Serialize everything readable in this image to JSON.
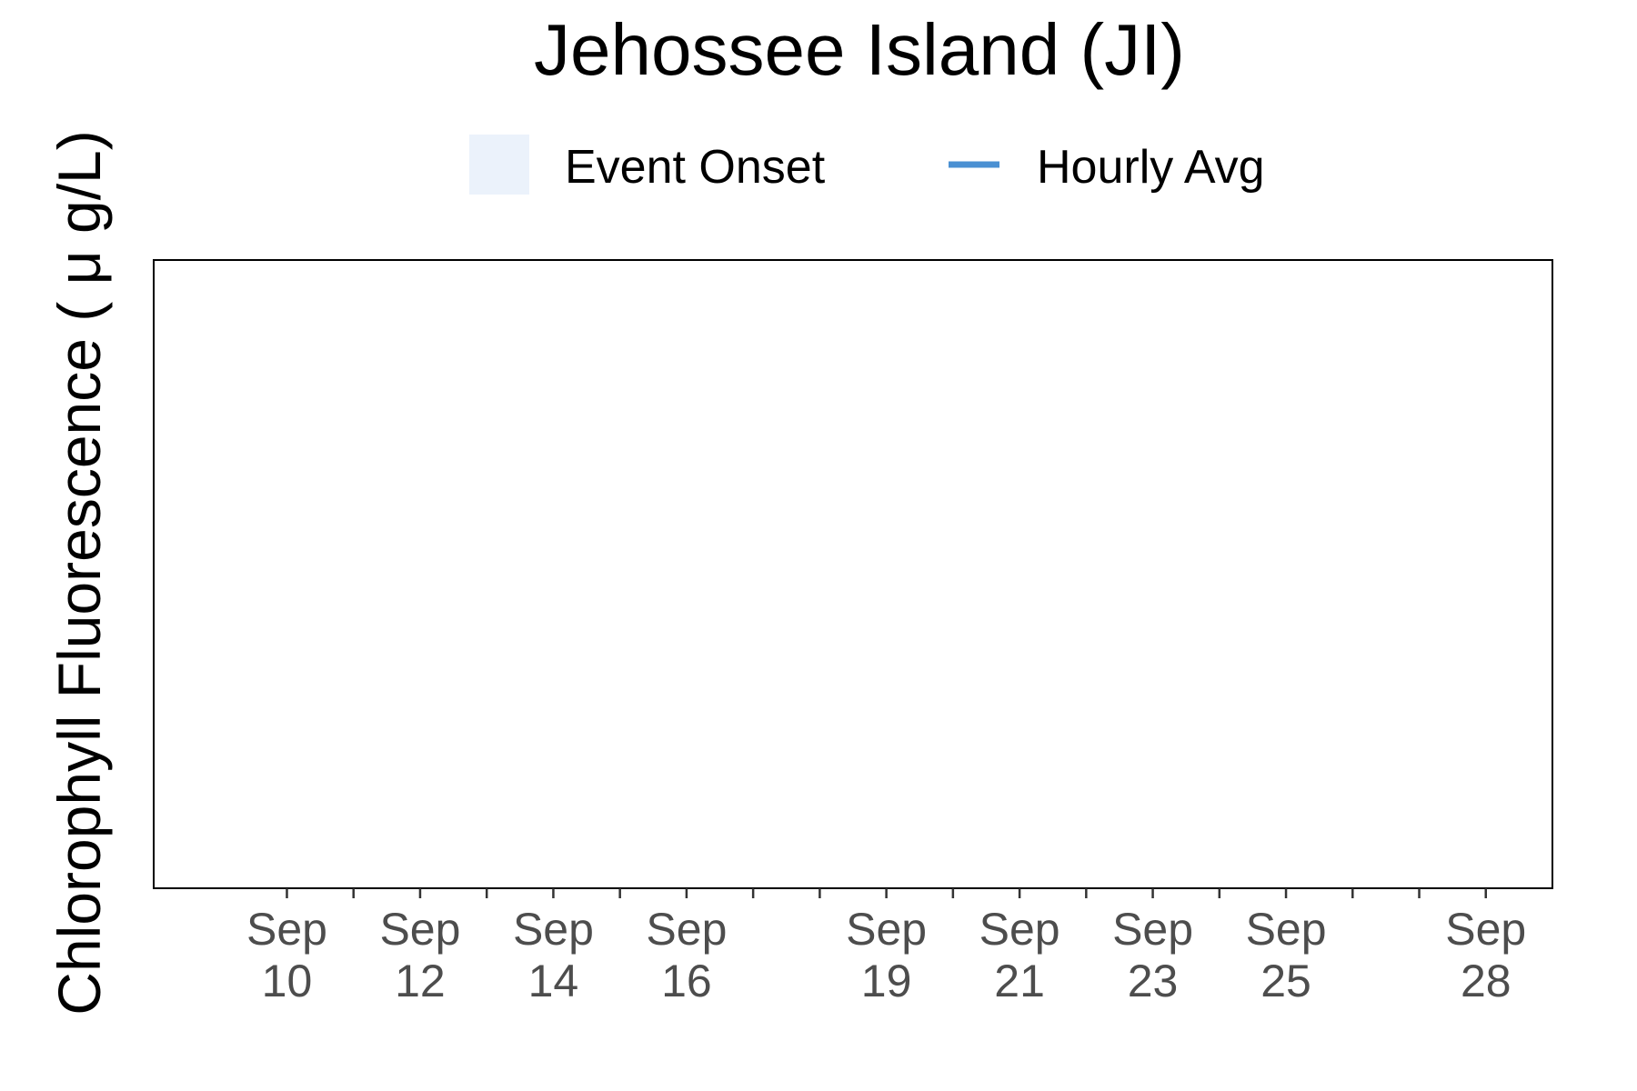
{
  "chart_data": {
    "type": "line",
    "title": "Jehossee Island (JI)",
    "ylabel": "Chlorophyll Fluorescence ( μ g/L)",
    "xlabel": "",
    "legend": {
      "placement": "top",
      "entries": [
        {
          "label": "Event Onset",
          "kind": "fill",
          "color": "#EBF2FB"
        },
        {
          "label": "Hourly Avg",
          "kind": "line",
          "color": "#4A90D2"
        }
      ]
    },
    "x": {
      "type": "date",
      "range": [
        "Sep 8",
        "Sep 29"
      ],
      "major_ticks": [
        {
          "date": "Sep 10",
          "line1": "Sep",
          "line2": "10"
        },
        {
          "date": "Sep 12",
          "line1": "Sep",
          "line2": "12"
        },
        {
          "date": "Sep 14",
          "line1": "Sep",
          "line2": "14"
        },
        {
          "date": "Sep 16",
          "line1": "Sep",
          "line2": "16"
        },
        {
          "date": "Sep 19",
          "line1": "Sep",
          "line2": "19"
        },
        {
          "date": "Sep 21",
          "line1": "Sep",
          "line2": "21"
        },
        {
          "date": "Sep 23",
          "line1": "Sep",
          "line2": "23"
        },
        {
          "date": "Sep 25",
          "line1": "Sep",
          "line2": "25"
        },
        {
          "date": "Sep 28",
          "line1": "Sep",
          "line2": "28"
        }
      ],
      "minor_ticks": [
        "Sep 11",
        "Sep 13",
        "Sep 15",
        "Sep 17",
        "Sep 18",
        "Sep 20",
        "Sep 22",
        "Sep 24",
        "Sep 26",
        "Sep 27"
      ]
    },
    "y": {
      "ticks": []
    },
    "grid": false,
    "series": [],
    "event_onsets": []
  }
}
